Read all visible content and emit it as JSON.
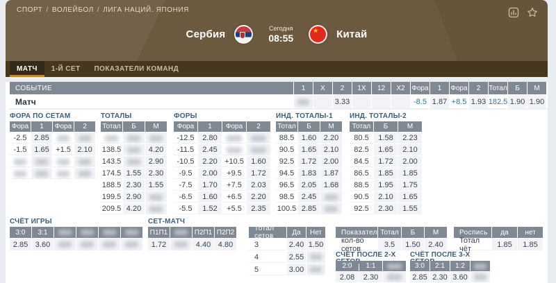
{
  "breadcrumb": {
    "items": [
      "СПОРТ",
      "ВОЛЕЙБОЛ",
      "ЛИГА НАЦИЙ. ЯПОНИЯ"
    ],
    "separator": "/"
  },
  "header": {
    "home_team": "Сербия",
    "away_team": "Китай",
    "date_label": "Сегодня",
    "time": "08:55",
    "icons": [
      "statistics-icon",
      "favorite-star-icon"
    ],
    "home_flag": "serbia-flag",
    "away_flag": "china-flag"
  },
  "tabs": [
    {
      "label": "МАТЧ",
      "active": true
    },
    {
      "label": "1-Й СЕТ",
      "active": false
    },
    {
      "label": "ПОКАЗАТЕЛИ КОМАНД",
      "active": false
    }
  ],
  "colors": {
    "accent_gold": "#c28a2e",
    "param_blue": "#2f72ad",
    "header_brown": "#6b5a3f",
    "tabbar_brown": "#46381f",
    "table_header_gray": "#7f8893",
    "section_title_blue": "#3d5c7d"
  },
  "event_table": {
    "headers": [
      "СОБЫТИЕ",
      "1",
      "X",
      "2",
      "1X",
      "12",
      "X2",
      "Фора",
      "1",
      "Фора",
      "2",
      "Тотал",
      "Б",
      "М"
    ],
    "rows": [
      [
        "Матч",
        null,
        "",
        "3.33",
        "",
        "",
        "",
        "-8.5",
        "1.87",
        "+8.5",
        "1.93",
        "182.5",
        "1.90",
        "1.90"
      ]
    ]
  },
  "sections": {
    "set_handicap": {
      "title": "ФОРА ПО СЕТАМ",
      "headers": [
        "Фора",
        "1",
        "Фора",
        "2"
      ],
      "rows": [
        [
          "-2.5",
          "2.85",
          null,
          null
        ],
        [
          "-1.5",
          "1.65",
          "+1.5",
          "2.10"
        ],
        [
          null,
          null,
          null,
          null
        ],
        [
          null,
          null,
          null,
          null
        ]
      ]
    },
    "totals": {
      "title": "ТОТАЛЫ",
      "headers": [
        "Тотал",
        "Б",
        "М"
      ],
      "rows": [
        [
          null,
          null,
          null
        ],
        [
          "138.5",
          null,
          "4.20"
        ],
        [
          "143.5",
          null,
          "2.90"
        ],
        [
          "174.5",
          "1.55",
          "2.30"
        ],
        [
          "188.5",
          "2.30",
          "1.55"
        ],
        [
          "199.5",
          "2.90",
          null
        ],
        [
          "209.5",
          "4.20",
          null
        ]
      ]
    },
    "handicaps": {
      "title": "ФОРЫ",
      "headers": [
        "Фора",
        "1",
        "Фора",
        "2"
      ],
      "rows": [
        [
          "-12.5",
          "2.80",
          null,
          null
        ],
        [
          "-11.5",
          "2.45",
          null,
          null
        ],
        [
          "-10.5",
          "2.20",
          "+10.5",
          "1.60"
        ],
        [
          "-9.5",
          "2.00",
          "+9.5",
          "1.72"
        ],
        [
          "-7.5",
          "1.70",
          "+7.5",
          "2.03"
        ],
        [
          "-6.5",
          "1.60",
          "+6.5",
          "2.20"
        ],
        [
          "-5.5",
          "1.52",
          "+5.5",
          "2.35"
        ]
      ]
    },
    "ind_totals_1": {
      "title": "ИНД. ТОТАЛЫ-1",
      "headers": [
        "Тотал",
        "Б",
        "М"
      ],
      "rows": [
        [
          "88.5",
          "1.60",
          "2.20"
        ],
        [
          "90.5",
          "1.65",
          "2.10"
        ],
        [
          "92.5",
          "1.72",
          "2.00"
        ],
        [
          "94.5",
          "1.83",
          "1.87"
        ],
        [
          "96.5",
          "2.05",
          "1.68"
        ],
        [
          "98.5",
          "2.45",
          null
        ],
        [
          "100.5",
          "2.85",
          null
        ]
      ]
    },
    "ind_totals_2": {
      "title": "ИНД. ТОТАЛЫ-2",
      "headers": [
        "Тотал",
        "Б",
        "М"
      ],
      "rows": [
        [
          "80.5",
          "1.58",
          "2.23"
        ],
        [
          "82.5",
          "1.65",
          "2.10"
        ],
        [
          "84.5",
          "1.72",
          "2.00"
        ],
        [
          "86.5",
          "1.85",
          "1.85"
        ],
        [
          "88.5",
          "1.95",
          "1.75"
        ],
        [
          "90.5",
          "2.10",
          "1.65"
        ],
        [
          "92.5",
          "2.30",
          "1.55"
        ]
      ]
    },
    "game_score": {
      "title": "СЧЁТ ИГРЫ",
      "headers": [
        "3:0",
        "3:1",
        null,
        null,
        null,
        null
      ],
      "rows": [
        [
          "2.85",
          "3.60",
          null,
          null,
          null,
          null
        ]
      ]
    },
    "set_match": {
      "title": "СЕТ-МАТЧ",
      "headers": [
        "П1П1",
        null,
        "П2П1",
        "П2П2"
      ],
      "rows": [
        [
          "1.72",
          null,
          "4.40",
          "4.80"
        ]
      ]
    },
    "total_sets": {
      "headers": [
        "Тотал сетов",
        "Да",
        "Нет"
      ],
      "rows": [
        [
          "3",
          "2.40",
          "1.50"
        ],
        [
          "4",
          "2.55",
          null
        ],
        [
          "5",
          "3.00",
          null
        ]
      ]
    },
    "indicators": {
      "headers": [
        "Показатели",
        "Тотал",
        "Б",
        "М"
      ],
      "rows": [
        [
          "кол-во сетов",
          "3.5",
          "1.50",
          "2.40"
        ]
      ]
    },
    "rospis": {
      "headers": [
        "Роспись",
        "да",
        "нет"
      ],
      "rows": [
        [
          "Тотал чёт",
          "1.85",
          "1.85"
        ]
      ]
    },
    "score_after_2": {
      "title": "СЧЁТ ПОСЛЕ 2-Х СЕТОВ",
      "headers": [
        "2:0",
        "1:1",
        null
      ],
      "rows": [
        [
          "2.08",
          "2.30",
          null
        ]
      ]
    },
    "score_after_3": {
      "title": "СЧЁТ ПОСЛЕ 3-Х СЕТОВ",
      "headers": [
        "3:0",
        "2:1",
        "1:2",
        null
      ],
      "rows": [
        [
          "2.85",
          "2.30",
          "3.60",
          null
        ]
      ]
    }
  }
}
